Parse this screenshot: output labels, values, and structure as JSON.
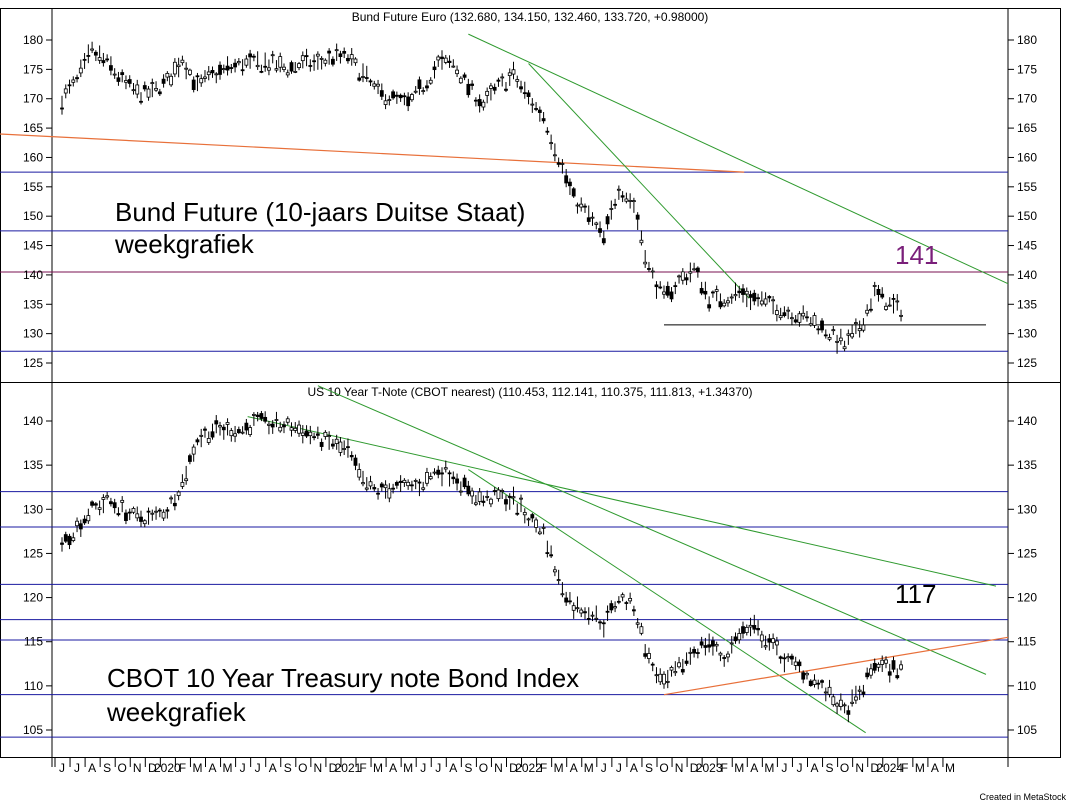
{
  "credit": "Created in MetaStock",
  "x_axis_labels": [
    "J",
    "J",
    "A",
    "S",
    "O",
    "N",
    "D",
    "2020",
    "F",
    "M",
    "A",
    "M",
    "J",
    "J",
    "A",
    "S",
    "O",
    "N",
    "D",
    "2021",
    "F",
    "M",
    "A",
    "M",
    "J",
    "J",
    "A",
    "S",
    "O",
    "N",
    "D",
    "2022",
    "F",
    "M",
    "A",
    "M",
    "J",
    "J",
    "A",
    "S",
    "O",
    "N",
    "D",
    "2023",
    "F",
    "M",
    "A",
    "M",
    "J",
    "J",
    "A",
    "S",
    "O",
    "N",
    "D",
    "2024",
    "F",
    "M",
    "A",
    "M"
  ],
  "chart_data": [
    {
      "type": "candlestick",
      "title": "Bund Future Euro (132.680, 134.150, 132.460, 133.720, +0.98000)",
      "annotation": "Bund Future (10-jaars Duitse Staat)",
      "annotation2": "weekgrafiek",
      "level_label": "141",
      "ylim": [
        122,
        183
      ],
      "yticks": [
        125,
        130,
        135,
        140,
        145,
        150,
        155,
        160,
        165,
        170,
        175,
        180
      ],
      "horizontal_levels": [
        157.5,
        147.5,
        140.5,
        127
      ],
      "colors": {
        "levels": "#1a1aa0",
        "resistance": "#7a1050",
        "trend": "#2f9a2f",
        "orange": "#e8703a",
        "label": "#7a1f7a"
      },
      "series": [
        {
          "values": [
            {
              "x": "2019-06",
              "y": 170
            },
            {
              "x": "2019-07",
              "y": 173
            },
            {
              "x": "2019-08",
              "y": 178
            },
            {
              "x": "2019-09",
              "y": 176
            },
            {
              "x": "2019-10",
              "y": 173
            },
            {
              "x": "2019-11",
              "y": 171
            },
            {
              "x": "2019-12",
              "y": 171
            },
            {
              "x": "2020-01",
              "y": 173
            },
            {
              "x": "2020-02",
              "y": 177
            },
            {
              "x": "2020-03",
              "y": 172
            },
            {
              "x": "2020-04",
              "y": 174
            },
            {
              "x": "2020-05",
              "y": 175
            },
            {
              "x": "2020-06",
              "y": 176
            },
            {
              "x": "2020-07",
              "y": 176
            },
            {
              "x": "2020-08",
              "y": 176
            },
            {
              "x": "2020-09",
              "y": 175
            },
            {
              "x": "2020-10",
              "y": 176
            },
            {
              "x": "2020-11",
              "y": 176
            },
            {
              "x": "2020-12",
              "y": 177
            },
            {
              "x": "2021-01",
              "y": 177
            },
            {
              "x": "2021-02",
              "y": 174
            },
            {
              "x": "2021-03",
              "y": 171
            },
            {
              "x": "2021-04",
              "y": 170
            },
            {
              "x": "2021-05",
              "y": 169
            },
            {
              "x": "2021-06",
              "y": 172
            },
            {
              "x": "2021-07",
              "y": 176
            },
            {
              "x": "2021-08",
              "y": 176
            },
            {
              "x": "2021-09",
              "y": 172
            },
            {
              "x": "2021-10",
              "y": 169
            },
            {
              "x": "2021-11",
              "y": 172
            },
            {
              "x": "2021-12",
              "y": 174
            },
            {
              "x": "2022-01",
              "y": 170
            },
            {
              "x": "2022-02",
              "y": 167
            },
            {
              "x": "2022-03",
              "y": 160
            },
            {
              "x": "2022-04",
              "y": 153
            },
            {
              "x": "2022-05",
              "y": 150
            },
            {
              "x": "2022-06",
              "y": 146
            },
            {
              "x": "2022-07",
              "y": 155
            },
            {
              "x": "2022-08",
              "y": 152
            },
            {
              "x": "2022-09",
              "y": 141
            },
            {
              "x": "2022-10",
              "y": 136
            },
            {
              "x": "2022-11",
              "y": 139
            },
            {
              "x": "2022-12",
              "y": 141
            },
            {
              "x": "2023-01",
              "y": 136
            },
            {
              "x": "2023-02",
              "y": 136
            },
            {
              "x": "2023-03",
              "y": 137
            },
            {
              "x": "2023-04",
              "y": 136
            },
            {
              "x": "2023-05",
              "y": 135
            },
            {
              "x": "2023-06",
              "y": 134
            },
            {
              "x": "2023-07",
              "y": 133
            },
            {
              "x": "2023-08",
              "y": 132
            },
            {
              "x": "2023-09",
              "y": 130
            },
            {
              "x": "2023-10",
              "y": 128
            },
            {
              "x": "2023-11",
              "y": 131
            },
            {
              "x": "2023-12",
              "y": 137
            },
            {
              "x": "2024-01",
              "y": 135
            },
            {
              "x": "2024-02",
              "y": 133.7
            }
          ]
        }
      ]
    },
    {
      "type": "candlestick",
      "title": "US 10 Year T-Note (CBOT nearest) (110.453, 112.141, 110.375, 111.813, +1.34370)",
      "annotation": "CBOT 10 Year Treasury note Bond Index",
      "annotation2": "weekgrafiek",
      "level_label": "117",
      "ylim": [
        103.5,
        144
      ],
      "yticks": [
        105,
        110,
        115,
        120,
        125,
        130,
        135,
        140
      ],
      "horizontal_levels": [
        132,
        128,
        121.5,
        117.5,
        115.2,
        109,
        104.2
      ],
      "colors": {
        "levels": "#1a1aa0",
        "trend": "#2f9a2f",
        "orange": "#e8703a"
      },
      "series": [
        {
          "values": [
            {
              "x": "2019-06",
              "y": 126
            },
            {
              "x": "2019-07",
              "y": 128
            },
            {
              "x": "2019-08",
              "y": 130
            },
            {
              "x": "2019-09",
              "y": 131
            },
            {
              "x": "2019-10",
              "y": 130
            },
            {
              "x": "2019-11",
              "y": 129
            },
            {
              "x": "2019-12",
              "y": 129
            },
            {
              "x": "2020-01",
              "y": 130
            },
            {
              "x": "2020-02",
              "y": 133
            },
            {
              "x": "2020-03",
              "y": 138
            },
            {
              "x": "2020-04",
              "y": 139
            },
            {
              "x": "2020-05",
              "y": 139
            },
            {
              "x": "2020-06",
              "y": 139
            },
            {
              "x": "2020-07",
              "y": 140
            },
            {
              "x": "2020-08",
              "y": 139.5
            },
            {
              "x": "2020-09",
              "y": 139.5
            },
            {
              "x": "2020-10",
              "y": 139
            },
            {
              "x": "2020-11",
              "y": 138
            },
            {
              "x": "2020-12",
              "y": 137.5
            },
            {
              "x": "2021-01",
              "y": 136.5
            },
            {
              "x": "2021-02",
              "y": 133
            },
            {
              "x": "2021-03",
              "y": 132
            },
            {
              "x": "2021-04",
              "y": 132.5
            },
            {
              "x": "2021-05",
              "y": 132.5
            },
            {
              "x": "2021-06",
              "y": 133
            },
            {
              "x": "2021-07",
              "y": 134.5
            },
            {
              "x": "2021-08",
              "y": 134
            },
            {
              "x": "2021-09",
              "y": 132
            },
            {
              "x": "2021-10",
              "y": 131
            },
            {
              "x": "2021-11",
              "y": 131.5
            },
            {
              "x": "2021-12",
              "y": 131
            },
            {
              "x": "2022-01",
              "y": 129
            },
            {
              "x": "2022-02",
              "y": 127.5
            },
            {
              "x": "2022-03",
              "y": 122
            },
            {
              "x": "2022-04",
              "y": 119
            },
            {
              "x": "2022-05",
              "y": 118.5
            },
            {
              "x": "2022-06",
              "y": 117
            },
            {
              "x": "2022-07",
              "y": 120
            },
            {
              "x": "2022-08",
              "y": 119
            },
            {
              "x": "2022-09",
              "y": 113
            },
            {
              "x": "2022-10",
              "y": 110
            },
            {
              "x": "2022-11",
              "y": 112
            },
            {
              "x": "2022-12",
              "y": 114
            },
            {
              "x": "2023-01",
              "y": 115
            },
            {
              "x": "2023-02",
              "y": 113
            },
            {
              "x": "2023-03",
              "y": 116
            },
            {
              "x": "2023-04",
              "y": 116.5
            },
            {
              "x": "2023-05",
              "y": 115
            },
            {
              "x": "2023-06",
              "y": 113
            },
            {
              "x": "2023-07",
              "y": 112
            },
            {
              "x": "2023-08",
              "y": 110.5
            },
            {
              "x": "2023-09",
              "y": 109
            },
            {
              "x": "2023-10",
              "y": 107
            },
            {
              "x": "2023-11",
              "y": 109
            },
            {
              "x": "2023-12",
              "y": 112.5
            },
            {
              "x": "2024-01",
              "y": 112
            },
            {
              "x": "2024-02",
              "y": 111.8
            }
          ]
        }
      ]
    }
  ]
}
